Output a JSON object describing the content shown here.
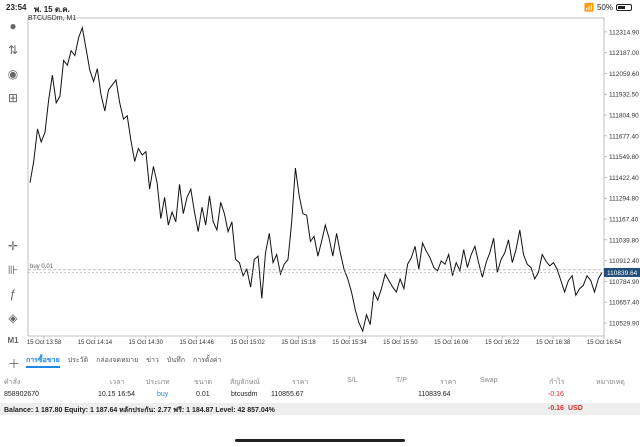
{
  "status_bar": {
    "time": "23:54",
    "date": "พ. 15 ต.ค.",
    "battery_percent": "50%",
    "battery_level": 0.5
  },
  "chart": {
    "symbol": "BTCUSDm, M1",
    "order_label": "buy 0.01",
    "current_price": "110839.64",
    "colors": {
      "line": "#111111",
      "grid": "#d9d9d9",
      "price_tag": "#1f4e79",
      "axis": "#999999"
    }
  },
  "chart_data": {
    "type": "line",
    "title": "BTCUSDm, M1",
    "xlabel": "",
    "ylabel": "",
    "ylim": [
      110450,
      112400
    ],
    "y_ticks": [
      "112314.90",
      "112187.00",
      "112059.60",
      "111932.50",
      "111804.90",
      "111677.40",
      "111549.80",
      "111422.40",
      "111294.80",
      "111167.40",
      "111039.80",
      "110912.40",
      "110784.90",
      "110657.40",
      "110529.90"
    ],
    "x_ticks": [
      "15 Oct 13:58",
      "15 Oct 14:14",
      "15 Oct 14:30",
      "15 Oct 14:46",
      "15 Oct 15:02",
      "15 Oct 15:18",
      "15 Oct 15:34",
      "15 Oct 15:50",
      "15 Oct 16:06",
      "15 Oct 16:22",
      "15 Oct 16:38",
      "15 Oct 16:54"
    ],
    "grid": true,
    "series": [
      {
        "values": [
          111390,
          111520,
          111720,
          111640,
          111700,
          111900,
          112050,
          111880,
          111920,
          112140,
          112110,
          112200,
          112170,
          112280,
          112340,
          112210,
          112080,
          112010,
          112090,
          111930,
          111830,
          111960,
          111990,
          112020,
          111880,
          111780,
          111800,
          111650,
          111520,
          111600,
          111560,
          111580,
          111350,
          111490,
          111390,
          111170,
          111300,
          111130,
          111210,
          111150,
          111380,
          111200,
          111300,
          111350,
          111210,
          111090,
          111240,
          111130,
          111310,
          111150,
          111100,
          111270,
          111200,
          111090,
          111150,
          110920,
          110900,
          110820,
          110860,
          110750,
          110920,
          110940,
          110680,
          110960,
          111080,
          110900,
          110950,
          110830,
          110890,
          110920,
          111150,
          111480,
          111310,
          111200,
          111190,
          111030,
          111060,
          110940,
          111030,
          111130,
          111050,
          110940,
          111080,
          110960,
          110860,
          110800,
          110720,
          110610,
          110530,
          110480,
          110580,
          110520,
          110720,
          110670,
          110740,
          110830,
          110790,
          110750,
          110720,
          110800,
          110740,
          110890,
          110930,
          111000,
          110860,
          111020,
          110970,
          110930,
          110870,
          110850,
          110910,
          110890,
          110950,
          110820,
          110900,
          110850,
          110980,
          110870,
          110950,
          111000,
          110900,
          110810,
          110900,
          110960,
          111050,
          110840,
          110920,
          110960,
          111040,
          110900,
          110980,
          111100,
          110950,
          110890,
          110870,
          110800,
          110840,
          110950,
          110910,
          110880,
          110900,
          110860,
          110790,
          110720,
          110790,
          110820,
          110700,
          110740,
          110760,
          110820,
          110790,
          110720,
          110800,
          110840
        ]
      }
    ]
  },
  "toolbar": {
    "icons": [
      "account-icon",
      "trade-icon",
      "chat-icon",
      "new-chart-icon",
      "crosshair-icon",
      "candles-icon",
      "indicators-icon",
      "objects-icon",
      "timeframe-label",
      "add-icon"
    ],
    "timeframe": "M1"
  },
  "tabs": [
    {
      "label": "การซื้อขาย",
      "active": true
    },
    {
      "label": "ประวัติ",
      "active": false
    },
    {
      "label": "กล่องจดหมาย",
      "active": false
    },
    {
      "label": "ข่าว",
      "active": false
    },
    {
      "label": "บันทึก",
      "active": false
    },
    {
      "label": "การตั้งค่า",
      "active": false
    }
  ],
  "positions": {
    "headers": [
      "คำสั่ง",
      "เวลา",
      "ประเภท",
      "ขนาด",
      "สัญลักษณ์",
      "ราคา",
      "S/L",
      "T/P",
      "ราคา",
      "Swap",
      "กำไร",
      "หมายเหตุ"
    ],
    "rows": [
      {
        "order": "858902670",
        "time": "10.15 16:54",
        "type": "buy",
        "size": "0.01",
        "symbol": "btcusdm",
        "price": "110855.67",
        "sl": "",
        "tp": "",
        "current_price": "110839.64",
        "swap": "",
        "profit": "-0.16",
        "comment": ""
      }
    ]
  },
  "balance": {
    "text": "Balance: 1 187.80 Equity: 1 187.64 หลักประกัน: 2.77 ฟรี: 1 184.87 Level: 42 857.04%",
    "profit": "-0.16",
    "currency": "USD"
  }
}
